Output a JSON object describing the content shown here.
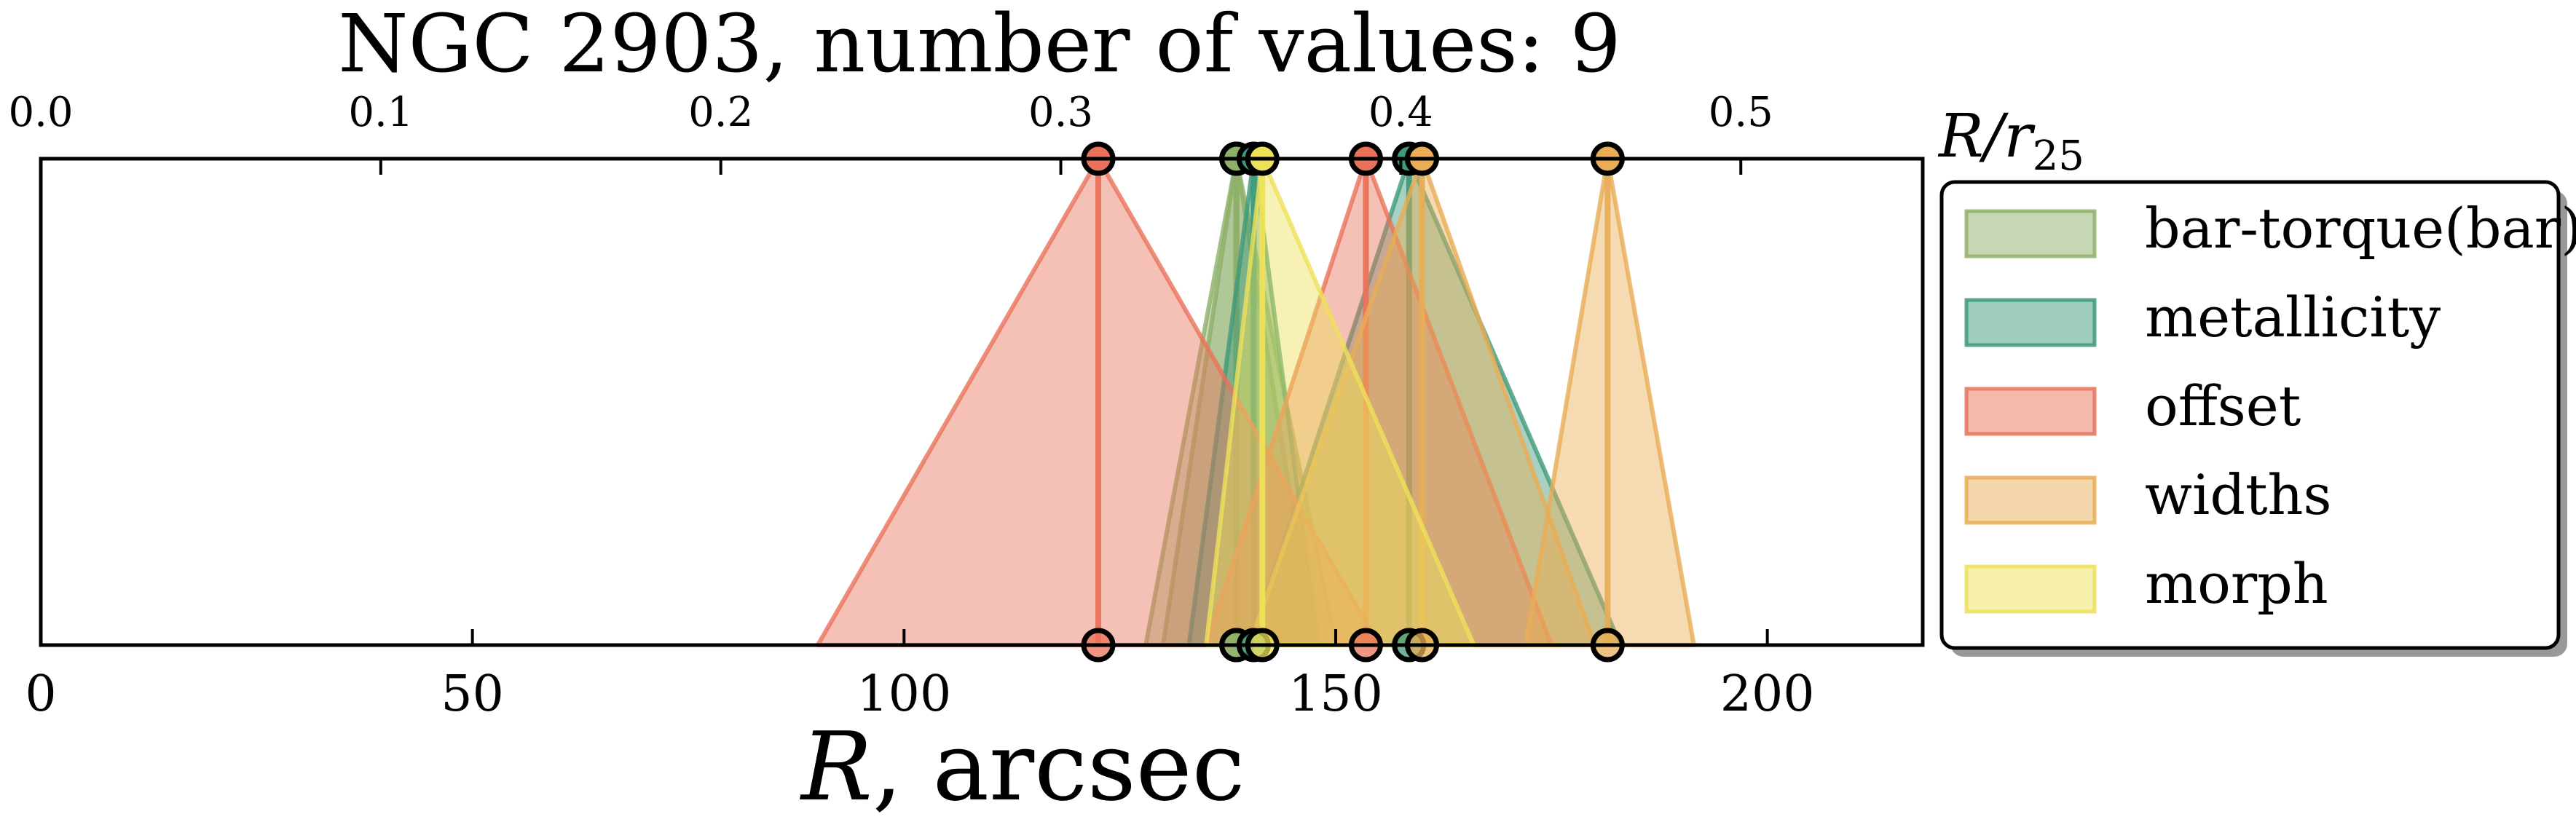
{
  "chart_data": {
    "type": "triangle-range",
    "title": "NGC 2903, number of values: 9",
    "x_axis": {
      "label_symbol": "R",
      "label_rest": ", arcsec",
      "range": [
        0,
        218
      ],
      "ticks": [
        0,
        50,
        100,
        150,
        200
      ],
      "tick_labels": [
        "0",
        "50",
        "100",
        "150",
        "200"
      ]
    },
    "top_axis": {
      "label_main": "R/r",
      "label_sub": "25",
      "range": [
        0.0,
        0.5535
      ],
      "ticks": [
        0.0,
        0.1,
        0.2,
        0.3,
        0.4,
        0.5
      ],
      "tick_labels": [
        "0.0",
        "0.1",
        "0.2",
        "0.3",
        "0.4",
        "0.5"
      ]
    },
    "grid": false,
    "legend_position": "right",
    "series": [
      {
        "name": "bar-torque(bar)",
        "color": "#8FB06A",
        "values": [
          {
            "r": 138.5,
            "r_min": 130.0,
            "r_max": 147.5
          },
          {
            "r": 138.5,
            "r_min": 128.0,
            "r_max": 150.0
          }
        ]
      },
      {
        "name": "metallicity",
        "color": "#3E9A7B",
        "values": [
          {
            "r": 140.5,
            "r_min": 133.0,
            "r_max": 148.0
          },
          {
            "r": 158.5,
            "r_min": 140.0,
            "r_max": 183.0
          }
        ]
      },
      {
        "name": "offset",
        "color": "#E8735A",
        "values": [
          {
            "r": 122.5,
            "r_min": 90.0,
            "r_max": 155.0
          },
          {
            "r": 153.5,
            "r_min": 135.0,
            "r_max": 175.0
          }
        ]
      },
      {
        "name": "widths",
        "color": "#E8AD55",
        "values": [
          {
            "r": 160.0,
            "r_min": 140.0,
            "r_max": 180.0
          },
          {
            "r": 181.5,
            "r_min": 172.0,
            "r_max": 191.5
          }
        ]
      },
      {
        "name": "morph",
        "color": "#EDE15A",
        "values": [
          {
            "r": 141.5,
            "r_min": 135.0,
            "r_max": 166.0
          }
        ]
      }
    ]
  }
}
